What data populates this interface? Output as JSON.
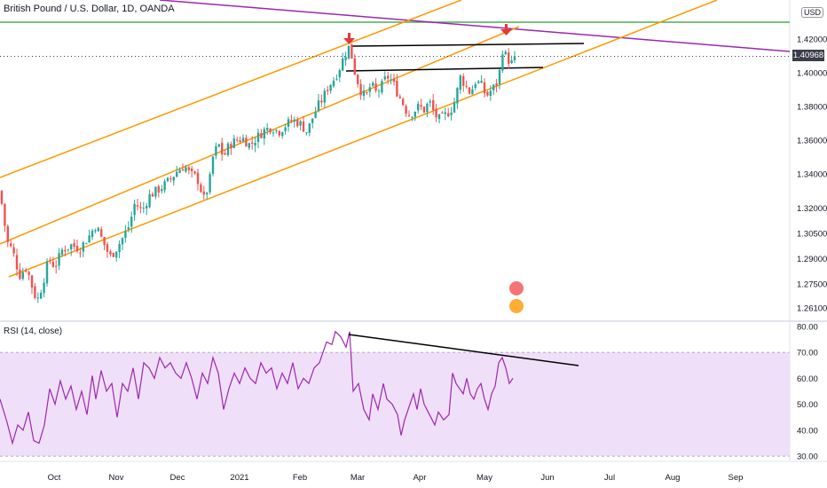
{
  "header": {
    "title": "British Pound / U.S. Dollar, 1D, OANDA",
    "currency": "USD",
    "last_price": "1.40968"
  },
  "rsi_panel": {
    "title": "RSI (14, close)"
  },
  "colors": {
    "up": "#26a69a",
    "down": "#ef5350",
    "channel": "#ff9800",
    "horizontal": "#4caf50",
    "trendline": "#9c27b0",
    "rsi": "#9c27b0",
    "rsi_band": "#e9d2f5",
    "arrow": "#e53935"
  },
  "chart_data": [
    {
      "type": "candlestick",
      "title": "British Pound / U.S. Dollar, 1D, OANDA",
      "ylim": [
        1.253,
        1.443
      ],
      "y_ticks": [
        "1.42000",
        "1.40000",
        "1.38000",
        "1.36000",
        "1.34000",
        "1.32000",
        "1.30500",
        "1.29000",
        "1.27500",
        "1.26100"
      ],
      "x_ticks": [
        "Oct",
        "Nov",
        "Dec",
        "2021",
        "Feb",
        "Mar",
        "Apr",
        "May",
        "Jun",
        "Jul",
        "Aug",
        "Sep"
      ],
      "last_price": 1.40968,
      "close_path": [
        [
          0,
          1.33
        ],
        [
          8,
          1.3
        ],
        [
          14,
          1.295
        ],
        [
          22,
          1.28
        ],
        [
          30,
          1.285
        ],
        [
          38,
          1.27
        ],
        [
          42,
          1.265
        ],
        [
          48,
          1.275
        ],
        [
          55,
          1.29
        ],
        [
          62,
          1.285
        ],
        [
          70,
          1.295
        ],
        [
          80,
          1.298
        ],
        [
          90,
          1.296
        ],
        [
          100,
          1.303
        ],
        [
          108,
          1.31
        ],
        [
          116,
          1.3
        ],
        [
          124,
          1.291
        ],
        [
          130,
          1.295
        ],
        [
          138,
          1.302
        ],
        [
          146,
          1.31
        ],
        [
          152,
          1.323
        ],
        [
          160,
          1.318
        ],
        [
          168,
          1.327
        ],
        [
          176,
          1.33
        ],
        [
          184,
          1.333
        ],
        [
          192,
          1.337
        ],
        [
          200,
          1.342
        ],
        [
          208,
          1.345
        ],
        [
          214,
          1.34
        ],
        [
          222,
          1.338
        ],
        [
          230,
          1.325
        ],
        [
          236,
          1.335
        ],
        [
          240,
          1.35
        ],
        [
          246,
          1.358
        ],
        [
          252,
          1.35
        ],
        [
          258,
          1.357
        ],
        [
          266,
          1.36
        ],
        [
          274,
          1.361
        ],
        [
          282,
          1.357
        ],
        [
          290,
          1.362
        ],
        [
          298,
          1.366
        ],
        [
          306,
          1.368
        ],
        [
          314,
          1.365
        ],
        [
          322,
          1.369
        ],
        [
          330,
          1.372
        ],
        [
          338,
          1.37
        ],
        [
          346,
          1.365
        ],
        [
          352,
          1.373
        ],
        [
          358,
          1.38
        ],
        [
          364,
          1.385
        ],
        [
          370,
          1.392
        ],
        [
          376,
          1.396
        ],
        [
          382,
          1.402
        ],
        [
          388,
          1.41
        ],
        [
          394,
          1.416
        ],
        [
          400,
          1.4
        ],
        [
          406,
          1.39
        ],
        [
          412,
          1.385
        ],
        [
          418,
          1.393
        ],
        [
          424,
          1.388
        ],
        [
          430,
          1.392
        ],
        [
          436,
          1.398
        ],
        [
          442,
          1.395
        ],
        [
          448,
          1.388
        ],
        [
          454,
          1.382
        ],
        [
          460,
          1.375
        ],
        [
          466,
          1.377
        ],
        [
          472,
          1.38
        ],
        [
          478,
          1.378
        ],
        [
          484,
          1.383
        ],
        [
          490,
          1.375
        ],
        [
          496,
          1.372
        ],
        [
          502,
          1.375
        ],
        [
          508,
          1.378
        ],
        [
          514,
          1.385
        ],
        [
          518,
          1.398
        ],
        [
          524,
          1.393
        ],
        [
          530,
          1.388
        ],
        [
          536,
          1.395
        ],
        [
          542,
          1.393
        ],
        [
          548,
          1.386
        ],
        [
          554,
          1.39
        ],
        [
          558,
          1.392
        ],
        [
          562,
          1.396
        ],
        [
          566,
          1.414
        ],
        [
          572,
          1.408
        ],
        [
          578,
          1.405
        ],
        [
          582,
          1.41
        ]
      ]
    },
    {
      "type": "line",
      "title": "RSI (14, close)",
      "ylim": [
        28,
        82
      ],
      "y_ticks": [
        "80.00",
        "70.00",
        "60.00",
        "50.00",
        "40.00",
        "30.00"
      ],
      "band": [
        30,
        70
      ],
      "values": [
        [
          0,
          52
        ],
        [
          8,
          43
        ],
        [
          14,
          35
        ],
        [
          20,
          42
        ],
        [
          26,
          40
        ],
        [
          32,
          47
        ],
        [
          38,
          36
        ],
        [
          44,
          35
        ],
        [
          50,
          42
        ],
        [
          56,
          56
        ],
        [
          62,
          50
        ],
        [
          68,
          59
        ],
        [
          74,
          52
        ],
        [
          80,
          57
        ],
        [
          86,
          48
        ],
        [
          92,
          55
        ],
        [
          98,
          46
        ],
        [
          104,
          61
        ],
        [
          108,
          52
        ],
        [
          114,
          63
        ],
        [
          120,
          55
        ],
        [
          126,
          58
        ],
        [
          132,
          45
        ],
        [
          138,
          58
        ],
        [
          144,
          55
        ],
        [
          150,
          64
        ],
        [
          156,
          52
        ],
        [
          162,
          66
        ],
        [
          168,
          64
        ],
        [
          174,
          60
        ],
        [
          180,
          68
        ],
        [
          186,
          64
        ],
        [
          192,
          66
        ],
        [
          198,
          62
        ],
        [
          204,
          60
        ],
        [
          210,
          66
        ],
        [
          216,
          60
        ],
        [
          222,
          52
        ],
        [
          228,
          62
        ],
        [
          234,
          58
        ],
        [
          240,
          68
        ],
        [
          246,
          62
        ],
        [
          252,
          48
        ],
        [
          258,
          56
        ],
        [
          264,
          62
        ],
        [
          270,
          58
        ],
        [
          276,
          64
        ],
        [
          282,
          60
        ],
        [
          288,
          58
        ],
        [
          294,
          66
        ],
        [
          300,
          62
        ],
        [
          306,
          64
        ],
        [
          312,
          56
        ],
        [
          318,
          62
        ],
        [
          324,
          58
        ],
        [
          330,
          66
        ],
        [
          336,
          56
        ],
        [
          342,
          60
        ],
        [
          348,
          58
        ],
        [
          354,
          64
        ],
        [
          360,
          66
        ],
        [
          364,
          70
        ],
        [
          368,
          74
        ],
        [
          374,
          73
        ],
        [
          378,
          78
        ],
        [
          384,
          76
        ],
        [
          390,
          72
        ],
        [
          394,
          78
        ],
        [
          398,
          55
        ],
        [
          404,
          58
        ],
        [
          410,
          48
        ],
        [
          416,
          44
        ],
        [
          420,
          54
        ],
        [
          426,
          48
        ],
        [
          432,
          58
        ],
        [
          436,
          52
        ],
        [
          442,
          50
        ],
        [
          448,
          46
        ],
        [
          452,
          38
        ],
        [
          456,
          44
        ],
        [
          462,
          50
        ],
        [
          466,
          54
        ],
        [
          470,
          48
        ],
        [
          474,
          56
        ],
        [
          478,
          50
        ],
        [
          484,
          46
        ],
        [
          490,
          42
        ],
        [
          494,
          47
        ],
        [
          500,
          44
        ],
        [
          506,
          46
        ],
        [
          510,
          62
        ],
        [
          514,
          58
        ],
        [
          518,
          56
        ],
        [
          522,
          54
        ],
        [
          526,
          60
        ],
        [
          530,
          54
        ],
        [
          534,
          52
        ],
        [
          538,
          56
        ],
        [
          542,
          58
        ],
        [
          546,
          52
        ],
        [
          550,
          48
        ],
        [
          554,
          54
        ],
        [
          558,
          57
        ],
        [
          562,
          66
        ],
        [
          566,
          68
        ],
        [
          570,
          64
        ],
        [
          574,
          58
        ],
        [
          578,
          60
        ]
      ]
    }
  ]
}
